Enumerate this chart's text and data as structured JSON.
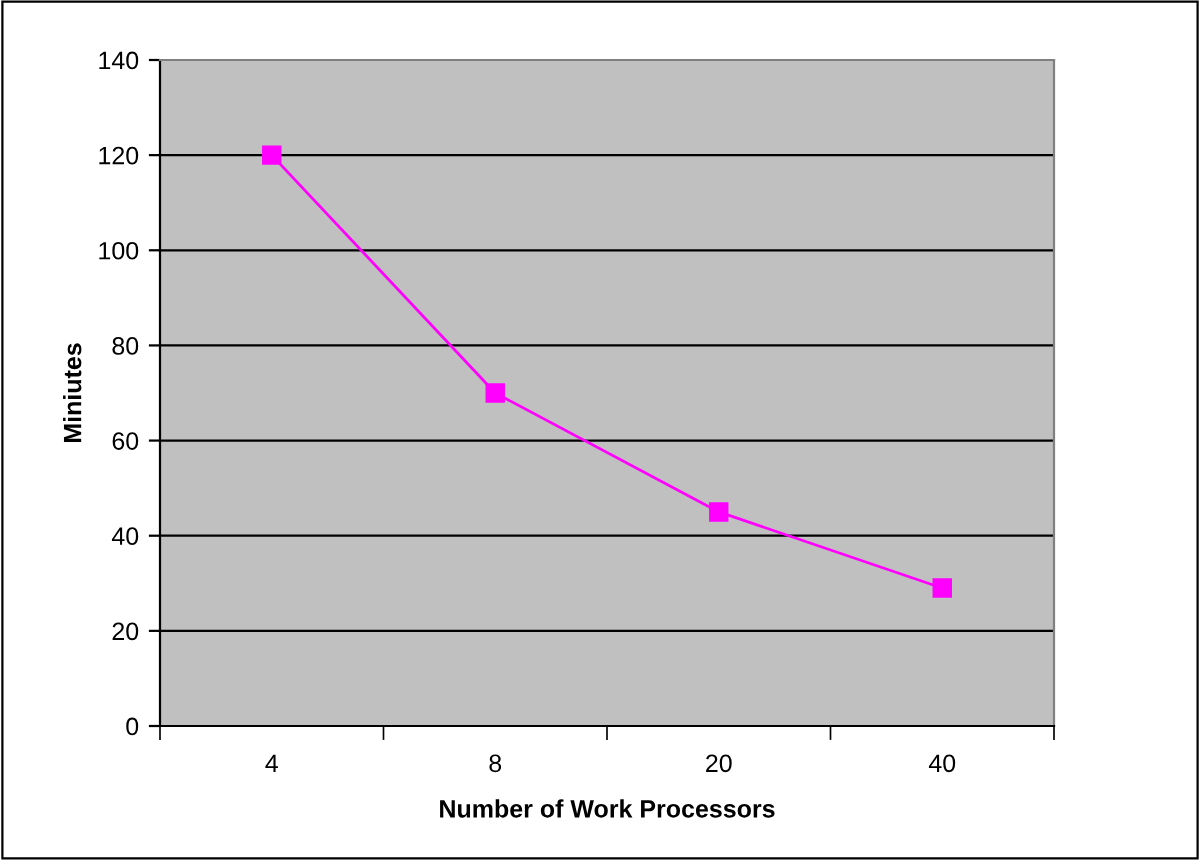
{
  "chart_data": {
    "type": "line",
    "xlabel": "Number of Work Processors",
    "ylabel": "Miniutes",
    "categories": [
      "4",
      "8",
      "20",
      "40"
    ],
    "series": [
      {
        "color": "#ff00ff",
        "values": [
          120,
          70,
          45,
          29
        ]
      }
    ],
    "ylim": [
      0,
      140
    ],
    "yticks": [
      0,
      20,
      40,
      60,
      80,
      100,
      120,
      140
    ],
    "grid": "y",
    "marker": "square",
    "line_style": "solid",
    "legend": false
  }
}
